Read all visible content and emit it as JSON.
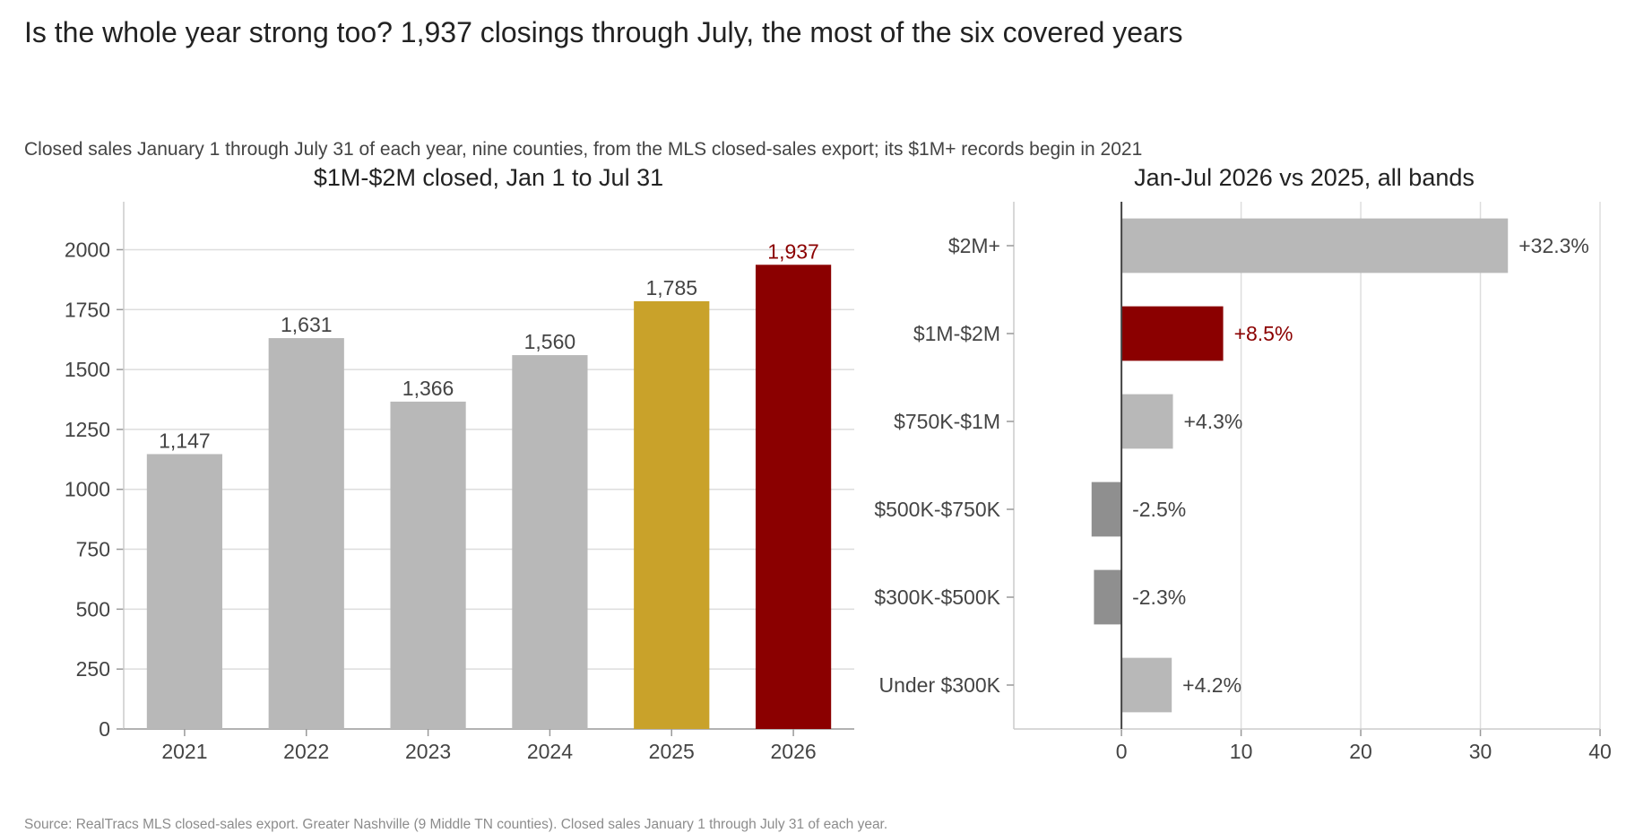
{
  "title": "Is the whole year strong too? 1,937 closings through July, the most of the six covered years",
  "subtitle": "Closed sales January 1 through July 31 of each year, nine counties, from the MLS closed-sales export; its $1M+ records begin in 2021",
  "source": "Source: RealTracs MLS closed-sales export. Greater Nashville (9 Middle TN counties). Closed sales January 1 through July 31 of each year.",
  "colors": {
    "default": "#b8b8b8",
    "prior_year": "#c9a22a",
    "highlight": "#8b0000",
    "negative": "#8f8f8f",
    "text": "#444444",
    "grid": "#dddddd"
  },
  "chart_data": [
    {
      "type": "bar",
      "title": "$1M-$2M closed, Jan 1 to Jul 31",
      "categories": [
        "2021",
        "2022",
        "2023",
        "2024",
        "2025",
        "2026"
      ],
      "values": [
        1147,
        1631,
        1366,
        1560,
        1785,
        1937
      ],
      "value_labels": [
        "1,147",
        "1,631",
        "1,366",
        "1,560",
        "1,785",
        "1,937"
      ],
      "bar_colors": [
        "#b8b8b8",
        "#b8b8b8",
        "#b8b8b8",
        "#b8b8b8",
        "#c9a22a",
        "#8b0000"
      ],
      "label_colors": [
        "#444444",
        "#444444",
        "#444444",
        "#444444",
        "#444444",
        "#8b0000"
      ],
      "ylim": [
        0,
        2200
      ],
      "yticks": [
        0,
        250,
        500,
        750,
        1000,
        1250,
        1500,
        1750,
        2000
      ],
      "grid": "horizontal"
    },
    {
      "type": "bar",
      "orientation": "horizontal",
      "title": "Jan-Jul 2026 vs 2025, all bands",
      "categories": [
        "$2M+",
        "$1M-$2M",
        "$750K-$1M",
        "$500K-$750K",
        "$300K-$500K",
        "Under $300K"
      ],
      "values": [
        32.3,
        8.5,
        4.3,
        -2.5,
        -2.3,
        4.2
      ],
      "value_labels": [
        "+32.3%",
        "+8.5%",
        "+4.3%",
        "-2.5%",
        "-2.3%",
        "+4.2%"
      ],
      "bar_colors": [
        "#b8b8b8",
        "#8b0000",
        "#b8b8b8",
        "#8f8f8f",
        "#8f8f8f",
        "#b8b8b8"
      ],
      "label_colors": [
        "#444444",
        "#8b0000",
        "#444444",
        "#444444",
        "#444444",
        "#444444"
      ],
      "xlim": [
        -9,
        40
      ],
      "xticks": [
        0,
        10,
        20,
        30,
        40
      ],
      "grid": "vertical"
    }
  ]
}
